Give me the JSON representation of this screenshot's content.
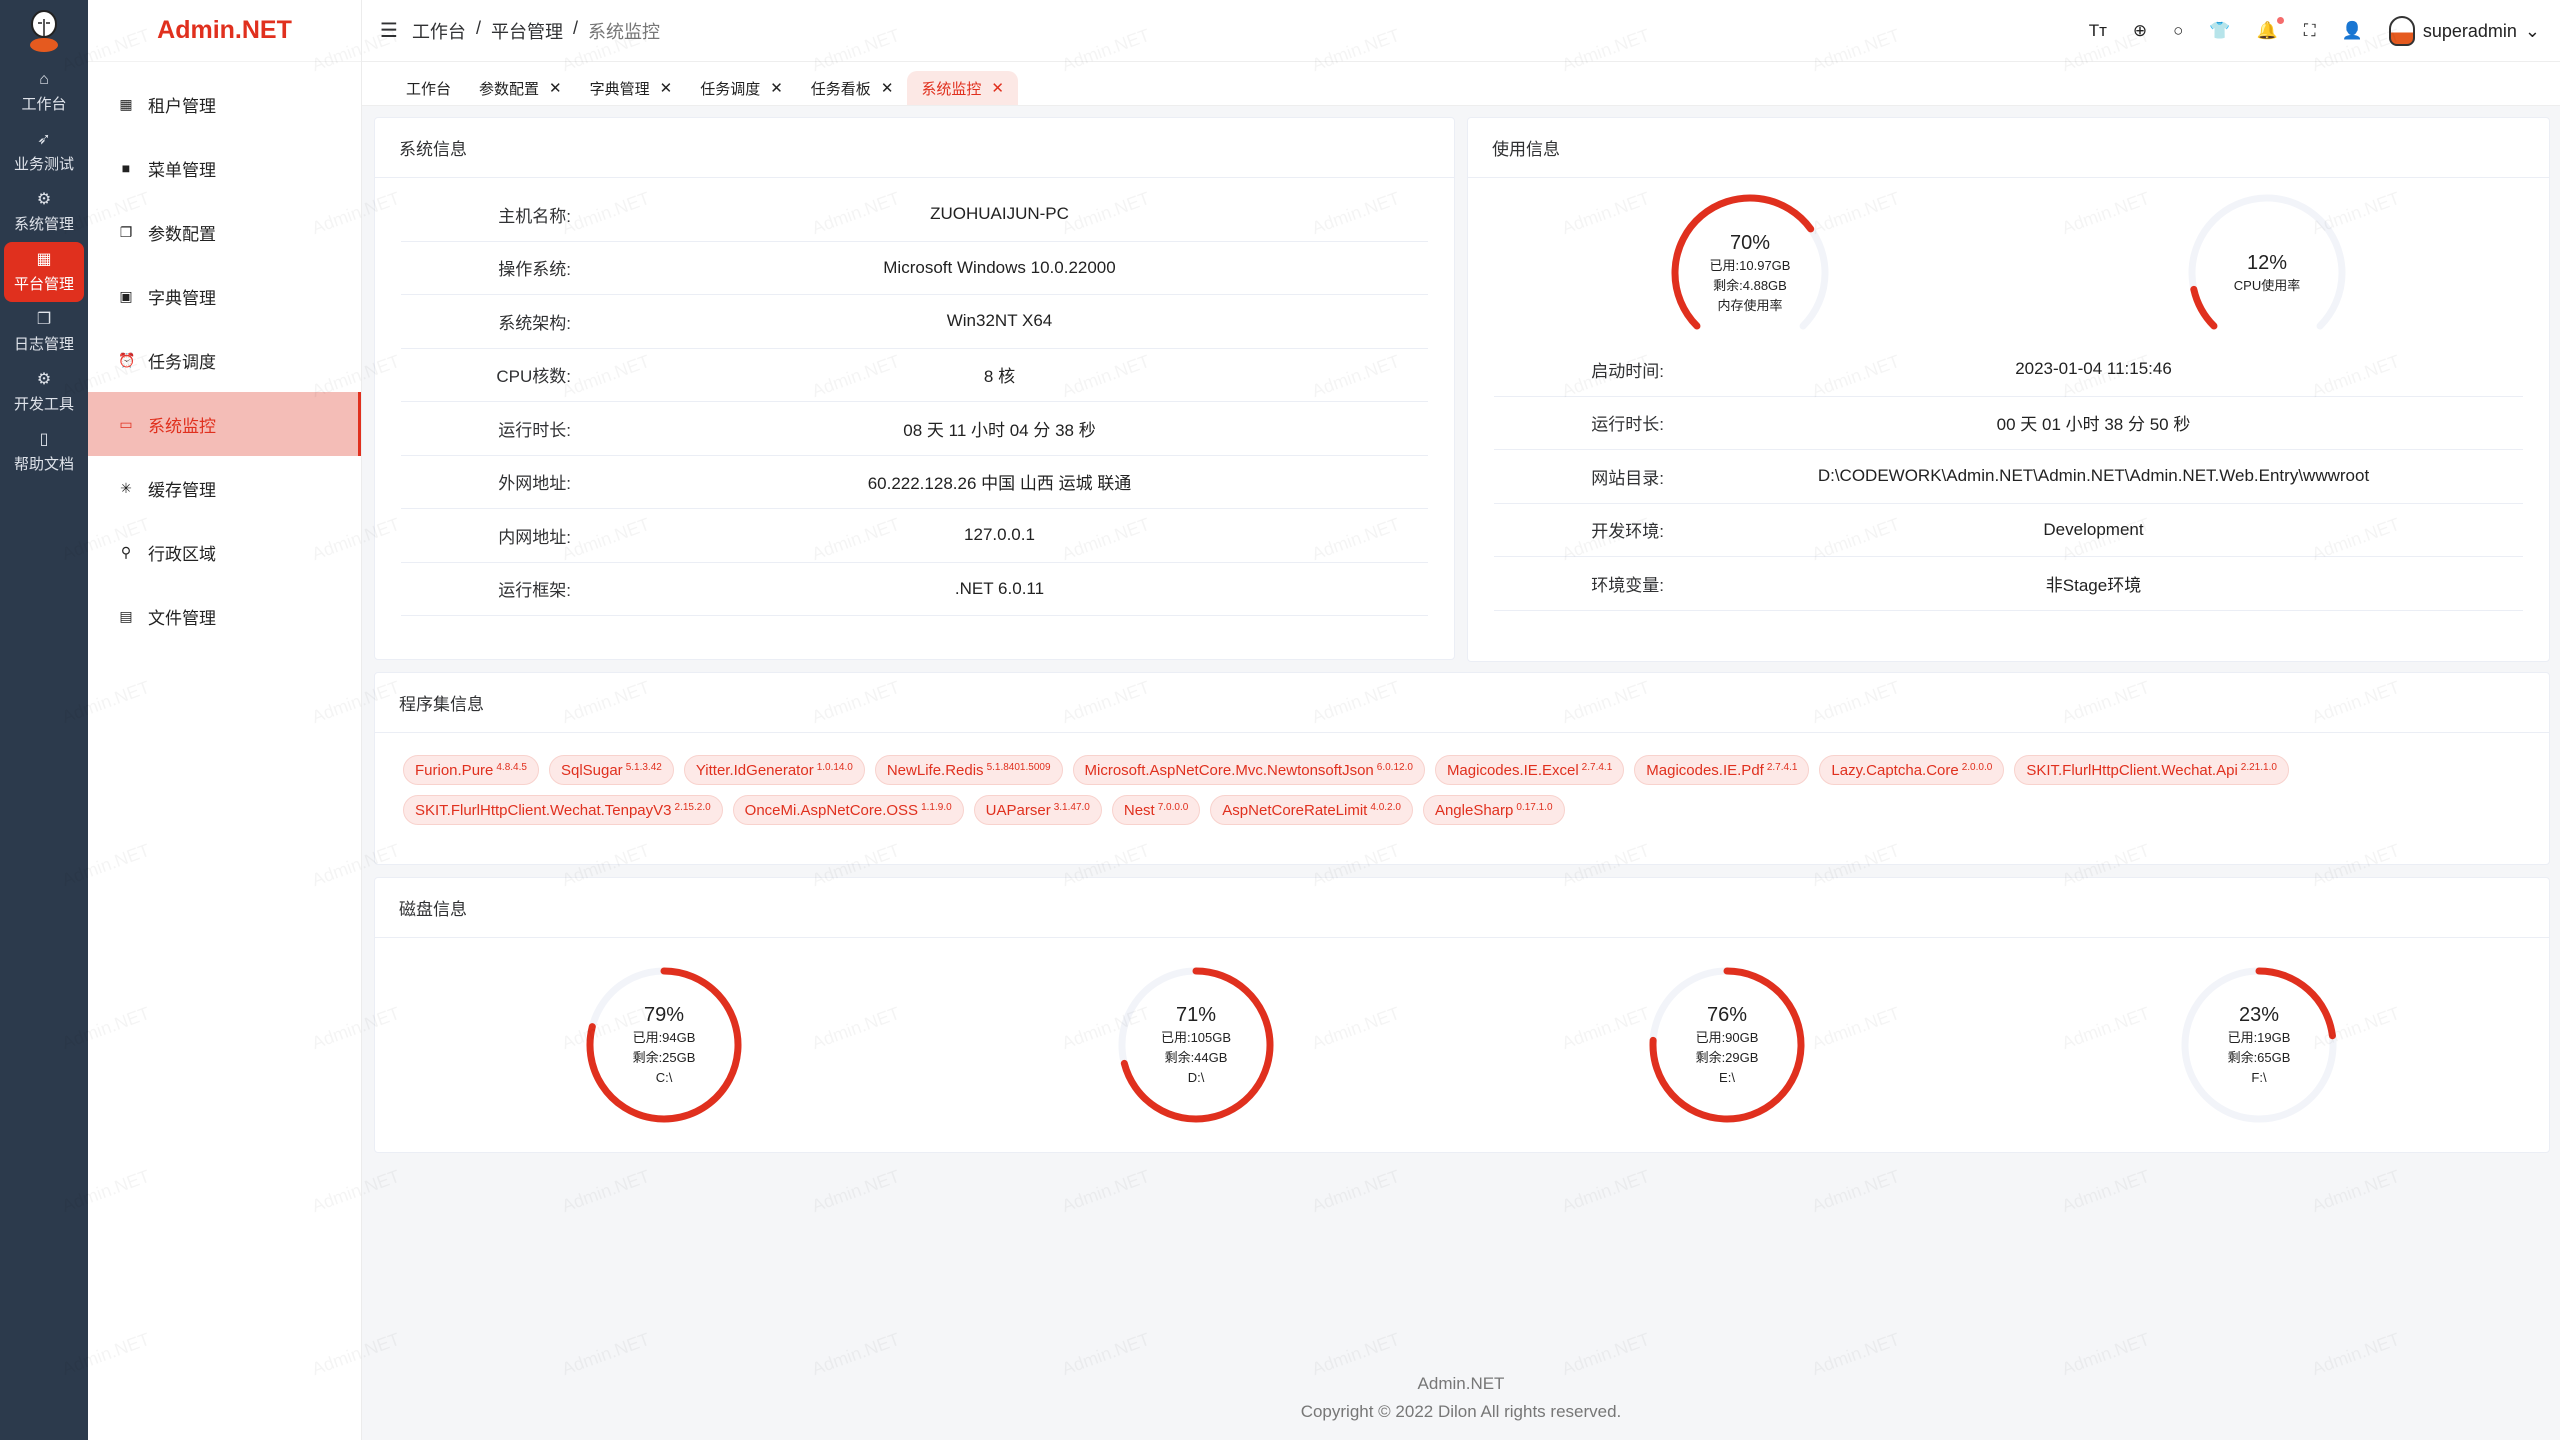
{
  "brand": "Admin.NET",
  "accent": "#e0301e",
  "rail": [
    {
      "icon": "home-icon",
      "glyph": "⌂",
      "label": "工作台"
    },
    {
      "icon": "send-icon",
      "glyph": "➶",
      "label": "业务测试"
    },
    {
      "icon": "gear-icon",
      "glyph": "⚙",
      "label": "系统管理"
    },
    {
      "icon": "grid-icon",
      "glyph": "▦",
      "label": "平台管理",
      "active": true
    },
    {
      "icon": "copy-icon",
      "glyph": "❐",
      "label": "日志管理"
    },
    {
      "icon": "cpu-icon",
      "glyph": "⚙",
      "label": "开发工具"
    },
    {
      "icon": "notebook-icon",
      "glyph": "▯",
      "label": "帮助文档"
    }
  ],
  "submenu": [
    {
      "icon": "building-icon",
      "glyph": "▦",
      "label": "租户管理"
    },
    {
      "icon": "grid-icon",
      "glyph": "■",
      "label": "菜单管理"
    },
    {
      "icon": "copy-icon",
      "glyph": "❐",
      "label": "参数配置"
    },
    {
      "icon": "book-icon",
      "glyph": "▣",
      "label": "字典管理"
    },
    {
      "icon": "alarm-clock-icon",
      "glyph": "⏰",
      "label": "任务调度"
    },
    {
      "icon": "monitor-icon",
      "glyph": "▭",
      "label": "系统监控",
      "active": true
    },
    {
      "icon": "loading-icon",
      "glyph": "✳",
      "label": "缓存管理"
    },
    {
      "icon": "location-icon",
      "glyph": "⚲",
      "label": "行政区域"
    },
    {
      "icon": "document-icon",
      "glyph": "▤",
      "label": "文件管理"
    }
  ],
  "breadcrumb": [
    "工作台",
    "平台管理",
    "系统监控"
  ],
  "header": {
    "username": "superadmin",
    "tools": [
      {
        "icon": "font-size-icon",
        "glyph": "Tт"
      },
      {
        "icon": "language-icon",
        "glyph": "⊕"
      },
      {
        "icon": "search-icon",
        "glyph": "○"
      },
      {
        "icon": "theme-shirt-icon",
        "glyph": "👕"
      },
      {
        "icon": "bell-icon",
        "glyph": "🔔",
        "badge": true
      },
      {
        "icon": "fullscreen-icon",
        "glyph": "⛶"
      },
      {
        "icon": "user-icon",
        "glyph": "👤"
      }
    ]
  },
  "tabs": [
    {
      "label": "工作台",
      "closable": false
    },
    {
      "label": "参数配置",
      "closable": true
    },
    {
      "label": "字典管理",
      "closable": true
    },
    {
      "label": "任务调度",
      "closable": true
    },
    {
      "label": "任务看板",
      "closable": true
    },
    {
      "label": "系统监控",
      "closable": true,
      "active": true
    }
  ],
  "sysinfo": {
    "title": "系统信息",
    "rows": [
      {
        "label": "主机名称:",
        "value": "ZUOHUAIJUN-PC"
      },
      {
        "label": "操作系统:",
        "value": "Microsoft Windows 10.0.22000"
      },
      {
        "label": "系统架构:",
        "value": "Win32NT X64"
      },
      {
        "label": "CPU核数:",
        "value": "8 核"
      },
      {
        "label": "运行时长:",
        "value": "08 天 11 小时 04 分 38 秒"
      },
      {
        "label": "外网地址:",
        "value": "60.222.128.26 中国 山西 运城 联通"
      },
      {
        "label": "内网地址:",
        "value": "127.0.0.1"
      },
      {
        "label": "运行框架:",
        "value": ".NET 6.0.11"
      }
    ]
  },
  "usage": {
    "title": "使用信息",
    "gauges": [
      {
        "percent": 70,
        "label": "70%",
        "lines": [
          "已用:10.97GB",
          "剩余:4.88GB",
          "内存使用率"
        ]
      },
      {
        "percent": 12,
        "label": "12%",
        "lines": [
          "CPU使用率"
        ]
      }
    ],
    "rows": [
      {
        "label": "启动时间:",
        "value": "2023-01-04 11:15:46"
      },
      {
        "label": "运行时长:",
        "value": "00 天 01 小时 38 分 50 秒"
      },
      {
        "label": "网站目录:",
        "value": "D:\\CODEWORK\\Admin.NET\\Admin.NET\\Admin.NET.Web.Entry\\wwwroot"
      },
      {
        "label": "开发环境:",
        "value": "Development"
      },
      {
        "label": "环境变量:",
        "value": "非Stage环境"
      }
    ]
  },
  "assemblies": {
    "title": "程序集信息",
    "items": [
      {
        "name": "Furion.Pure",
        "version": "4.8.4.5"
      },
      {
        "name": "SqlSugar",
        "version": "5.1.3.42"
      },
      {
        "name": "Yitter.IdGenerator",
        "version": "1.0.14.0"
      },
      {
        "name": "NewLife.Redis",
        "version": "5.1.8401.5009"
      },
      {
        "name": "Microsoft.AspNetCore.Mvc.NewtonsoftJson",
        "version": "6.0.12.0"
      },
      {
        "name": "Magicodes.IE.Excel",
        "version": "2.7.4.1"
      },
      {
        "name": "Magicodes.IE.Pdf",
        "version": "2.7.4.1"
      },
      {
        "name": "Lazy.Captcha.Core",
        "version": "2.0.0.0"
      },
      {
        "name": "SKIT.FlurlHttpClient.Wechat.Api",
        "version": "2.21.1.0"
      },
      {
        "name": "SKIT.FlurlHttpClient.Wechat.TenpayV3",
        "version": "2.15.2.0"
      },
      {
        "name": "OnceMi.AspNetCore.OSS",
        "version": "1.1.9.0"
      },
      {
        "name": "UAParser",
        "version": "3.1.47.0"
      },
      {
        "name": "Nest",
        "version": "7.0.0.0"
      },
      {
        "name": "AspNetCoreRateLimit",
        "version": "4.0.2.0"
      },
      {
        "name": "AngleSharp",
        "version": "0.17.1.0"
      }
    ]
  },
  "disks": {
    "title": "磁盘信息",
    "items": [
      {
        "percent": 79,
        "label": "79%",
        "used": "已用:94GB",
        "free": "剩余:25GB",
        "drive": "C:\\"
      },
      {
        "percent": 71,
        "label": "71%",
        "used": "已用:105GB",
        "free": "剩余:44GB",
        "drive": "D:\\"
      },
      {
        "percent": 76,
        "label": "76%",
        "used": "已用:90GB",
        "free": "剩余:29GB",
        "drive": "E:\\"
      },
      {
        "percent": 23,
        "label": "23%",
        "used": "已用:19GB",
        "free": "剩余:65GB",
        "drive": "F:\\"
      }
    ]
  },
  "footer": {
    "name": "Admin.NET",
    "copyright": "Copyright © 2022 Dilon All rights reserved."
  },
  "watermark": "Admin.NET"
}
